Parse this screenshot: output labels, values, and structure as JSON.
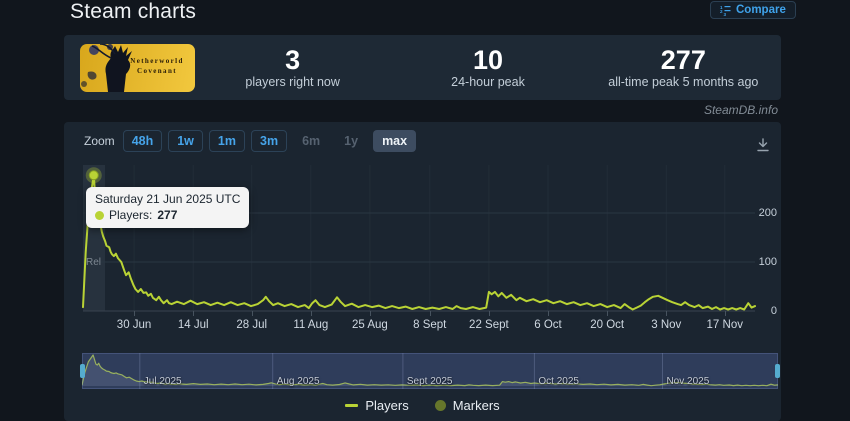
{
  "page": {
    "title": "Steam charts",
    "watermark": "SteamDB.info"
  },
  "compare_button": {
    "label": "Compare"
  },
  "capsule": {
    "game_line1": "Netherworld",
    "game_line2": "Covenant"
  },
  "stats": [
    {
      "value": "3",
      "label": "players right now"
    },
    {
      "value": "10",
      "label": "24-hour peak"
    },
    {
      "value": "277",
      "label": "all-time peak 5 months ago"
    }
  ],
  "zoom_bar": {
    "label": "Zoom",
    "options": [
      {
        "label": "48h",
        "state": "active"
      },
      {
        "label": "1w",
        "state": "active"
      },
      {
        "label": "1m",
        "state": "active"
      },
      {
        "label": "3m",
        "state": "active"
      },
      {
        "label": "6m",
        "state": "disabled"
      },
      {
        "label": "1y",
        "state": "disabled"
      },
      {
        "label": "max",
        "state": "selected"
      }
    ]
  },
  "tooltip": {
    "date": "Saturday 21 Jun 2025 UTC",
    "series_label": "Players:",
    "value": "277"
  },
  "flag_label": "Rel",
  "legend": [
    {
      "label": "Players",
      "swatch": "line",
      "color": "#b9d335"
    },
    {
      "label": "Markers",
      "swatch": "dot",
      "color": "#66762b"
    }
  ],
  "colors": {
    "line": "#b9d335",
    "grid": "#2a3642",
    "vgrid": "#222d38",
    "axis": "#39434f",
    "hover_band": "#27323e",
    "accent_blue": "#46a4ea",
    "nav_mask": "rgba(88,108,176,0.34)"
  },
  "chart_data": {
    "type": "line",
    "title": "Steam charts — concurrent players (max range)",
    "ylabel": "Players",
    "ylim": [
      0,
      300
    ],
    "y_ticks": [
      {
        "label": "0",
        "v": 0
      },
      {
        "label": "100",
        "v": 100
      },
      {
        "label": "200",
        "v": 200
      }
    ],
    "x_ticks": [
      {
        "label": "30 Jun",
        "f": 0.076
      },
      {
        "label": "14 Jul",
        "f": 0.164
      },
      {
        "label": "28 Jul",
        "f": 0.251
      },
      {
        "label": "11 Aug",
        "f": 0.339
      },
      {
        "label": "25 Aug",
        "f": 0.427
      },
      {
        "label": "8 Sept",
        "f": 0.516
      },
      {
        "label": "22 Sept",
        "f": 0.604
      },
      {
        "label": "6 Oct",
        "f": 0.692
      },
      {
        "label": "20 Oct",
        "f": 0.78
      },
      {
        "label": "3 Nov",
        "f": 0.868
      },
      {
        "label": "17 Nov",
        "f": 0.955
      }
    ],
    "peak": {
      "f": 0.016,
      "value": 277,
      "date": "Saturday 21 Jun 2025 UTC"
    },
    "series": [
      {
        "name": "Players",
        "color": "#b9d335",
        "points": [
          [
            0,
            8
          ],
          [
            0.004,
            120
          ],
          [
            0.009,
            215
          ],
          [
            0.016,
            277
          ],
          [
            0.02,
            196
          ],
          [
            0.022,
            188
          ],
          [
            0.024,
            204
          ],
          [
            0.026,
            176
          ],
          [
            0.028,
            162
          ],
          [
            0.03,
            152
          ],
          [
            0.033,
            142
          ],
          [
            0.035,
            133
          ],
          [
            0.039,
            130
          ],
          [
            0.041,
            121
          ],
          [
            0.043,
            116
          ],
          [
            0.046,
            112
          ],
          [
            0.049,
            117
          ],
          [
            0.052,
            108
          ],
          [
            0.057,
            100
          ],
          [
            0.061,
            84
          ],
          [
            0.064,
            73
          ],
          [
            0.068,
            79
          ],
          [
            0.071,
            67
          ],
          [
            0.075,
            53
          ],
          [
            0.078,
            45
          ],
          [
            0.082,
            39
          ],
          [
            0.086,
            45
          ],
          [
            0.09,
            37
          ],
          [
            0.094,
            38
          ],
          [
            0.097,
            31
          ],
          [
            0.101,
            35
          ],
          [
            0.104,
            27
          ],
          [
            0.109,
            22
          ],
          [
            0.113,
            29
          ],
          [
            0.116,
            22
          ],
          [
            0.12,
            16
          ],
          [
            0.125,
            22
          ],
          [
            0.128,
            16
          ],
          [
            0.132,
            14
          ],
          [
            0.14,
            19
          ],
          [
            0.15,
            14
          ],
          [
            0.16,
            21
          ],
          [
            0.17,
            14
          ],
          [
            0.18,
            18
          ],
          [
            0.19,
            12
          ],
          [
            0.2,
            17
          ],
          [
            0.21,
            12
          ],
          [
            0.22,
            18
          ],
          [
            0.23,
            12
          ],
          [
            0.24,
            16
          ],
          [
            0.25,
            10
          ],
          [
            0.26,
            14
          ],
          [
            0.268,
            22
          ],
          [
            0.272,
            29
          ],
          [
            0.277,
            20
          ],
          [
            0.283,
            12
          ],
          [
            0.29,
            16
          ],
          [
            0.3,
            10
          ],
          [
            0.31,
            14
          ],
          [
            0.32,
            8
          ],
          [
            0.33,
            12
          ],
          [
            0.336,
            6
          ],
          [
            0.341,
            16
          ],
          [
            0.346,
            22
          ],
          [
            0.352,
            12
          ],
          [
            0.36,
            8
          ],
          [
            0.37,
            13
          ],
          [
            0.378,
            28
          ],
          [
            0.384,
            18
          ],
          [
            0.39,
            10
          ],
          [
            0.4,
            15
          ],
          [
            0.41,
            8
          ],
          [
            0.42,
            12
          ],
          [
            0.43,
            8
          ],
          [
            0.44,
            11
          ],
          [
            0.45,
            6
          ],
          [
            0.46,
            10
          ],
          [
            0.47,
            6
          ],
          [
            0.48,
            9
          ],
          [
            0.49,
            4
          ],
          [
            0.5,
            8
          ],
          [
            0.51,
            4
          ],
          [
            0.52,
            7
          ],
          [
            0.53,
            4
          ],
          [
            0.54,
            8
          ],
          [
            0.55,
            4
          ],
          [
            0.556,
            10
          ],
          [
            0.562,
            6
          ],
          [
            0.57,
            4
          ],
          [
            0.58,
            8
          ],
          [
            0.59,
            4
          ],
          [
            0.6,
            7
          ],
          [
            0.604,
            39
          ],
          [
            0.608,
            34
          ],
          [
            0.613,
            39
          ],
          [
            0.618,
            30
          ],
          [
            0.623,
            37
          ],
          [
            0.63,
            27
          ],
          [
            0.637,
            33
          ],
          [
            0.645,
            22
          ],
          [
            0.65,
            27
          ],
          [
            0.66,
            20
          ],
          [
            0.67,
            24
          ],
          [
            0.68,
            18
          ],
          [
            0.69,
            22
          ],
          [
            0.7,
            16
          ],
          [
            0.71,
            20
          ],
          [
            0.72,
            14
          ],
          [
            0.73,
            18
          ],
          [
            0.74,
            12
          ],
          [
            0.75,
            16
          ],
          [
            0.76,
            10
          ],
          [
            0.77,
            14
          ],
          [
            0.78,
            8
          ],
          [
            0.79,
            12
          ],
          [
            0.8,
            6
          ],
          [
            0.806,
            14
          ],
          [
            0.812,
            8
          ],
          [
            0.818,
            3
          ],
          [
            0.824,
            7
          ],
          [
            0.83,
            11
          ],
          [
            0.836,
            18
          ],
          [
            0.842,
            24
          ],
          [
            0.848,
            29
          ],
          [
            0.856,
            31
          ],
          [
            0.864,
            26
          ],
          [
            0.87,
            22
          ],
          [
            0.877,
            18
          ],
          [
            0.885,
            14
          ],
          [
            0.89,
            12
          ],
          [
            0.896,
            18
          ],
          [
            0.902,
            12
          ],
          [
            0.91,
            8
          ],
          [
            0.916,
            12
          ],
          [
            0.922,
            6
          ],
          [
            0.93,
            9
          ],
          [
            0.936,
            4
          ],
          [
            0.942,
            8
          ],
          [
            0.948,
            3
          ],
          [
            0.954,
            6
          ],
          [
            0.96,
            3
          ],
          [
            0.966,
            6
          ],
          [
            0.972,
            3
          ],
          [
            0.978,
            6
          ],
          [
            0.984,
            3
          ],
          [
            0.99,
            16
          ],
          [
            0.995,
            7
          ],
          [
            1,
            10
          ]
        ]
      }
    ],
    "navigator": {
      "months": [
        {
          "label": "Jul 2025",
          "f": 0.083
        },
        {
          "label": "Aug 2025",
          "f": 0.274
        },
        {
          "label": "Sept 2025",
          "f": 0.461
        },
        {
          "label": "Oct 2025",
          "f": 0.65
        },
        {
          "label": "Nov 2025",
          "f": 0.834
        }
      ],
      "selected_range": [
        0,
        1
      ]
    }
  }
}
